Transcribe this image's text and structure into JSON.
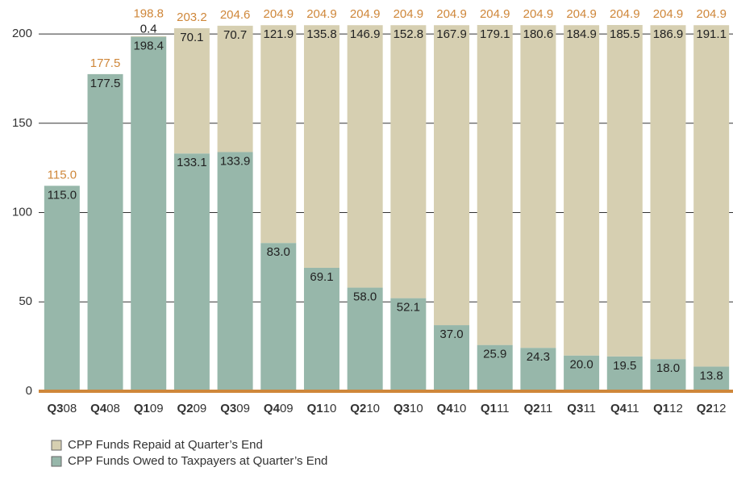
{
  "chart_data": {
    "type": "stacked_bar",
    "categories": [
      "Q308",
      "Q408",
      "Q109",
      "Q209",
      "Q309",
      "Q409",
      "Q110",
      "Q210",
      "Q310",
      "Q410",
      "Q111",
      "Q211",
      "Q311",
      "Q411",
      "Q112",
      "Q212"
    ],
    "series": [
      {
        "name": "CPP Funds Owed to Taxpayers at Quarter’s End",
        "color": "#97b7aa",
        "values": [
          115.0,
          177.5,
          198.4,
          133.1,
          133.9,
          83.0,
          69.1,
          58.0,
          52.1,
          37.0,
          25.9,
          24.3,
          20.0,
          19.5,
          18.0,
          13.8
        ],
        "value_labels": [
          "115.0",
          "177.5",
          "198.4",
          "133.1",
          "133.9",
          "83.0",
          "69.1",
          "58.0",
          "52.1",
          "37.0",
          "25.9",
          "24.3",
          "20.0",
          "19.5",
          "18.0",
          "13.8"
        ]
      },
      {
        "name": "CPP Funds Repaid at Quarter’s End",
        "color": "#d6cfb1",
        "values": [
          null,
          null,
          0.4,
          70.1,
          70.7,
          121.9,
          135.8,
          146.9,
          152.8,
          167.9,
          179.1,
          180.6,
          184.9,
          185.5,
          186.9,
          191.1
        ],
        "value_labels": [
          null,
          null,
          "0.4",
          "70.1",
          "70.7",
          "121.9",
          "135.8",
          "146.9",
          "152.8",
          "167.9",
          "179.1",
          "180.6",
          "184.9",
          "185.5",
          "186.9",
          "191.1"
        ]
      }
    ],
    "totals": {
      "color": "#cf873a",
      "values": [
        115.0,
        177.5,
        198.8,
        203.2,
        204.6,
        204.9,
        204.9,
        204.9,
        204.9,
        204.9,
        204.9,
        204.9,
        204.9,
        204.9,
        204.9,
        204.9
      ],
      "value_labels": [
        "115.0",
        "177.5",
        "198.8",
        "203.2",
        "204.6",
        "204.9",
        "204.9",
        "204.9",
        "204.9",
        "204.9",
        "204.9",
        "204.9",
        "204.9",
        "204.9",
        "204.9",
        "204.9"
      ]
    },
    "ylim": [
      0,
      205
    ],
    "yticks": [
      0,
      50,
      100,
      150,
      200
    ],
    "grid": true
  }
}
